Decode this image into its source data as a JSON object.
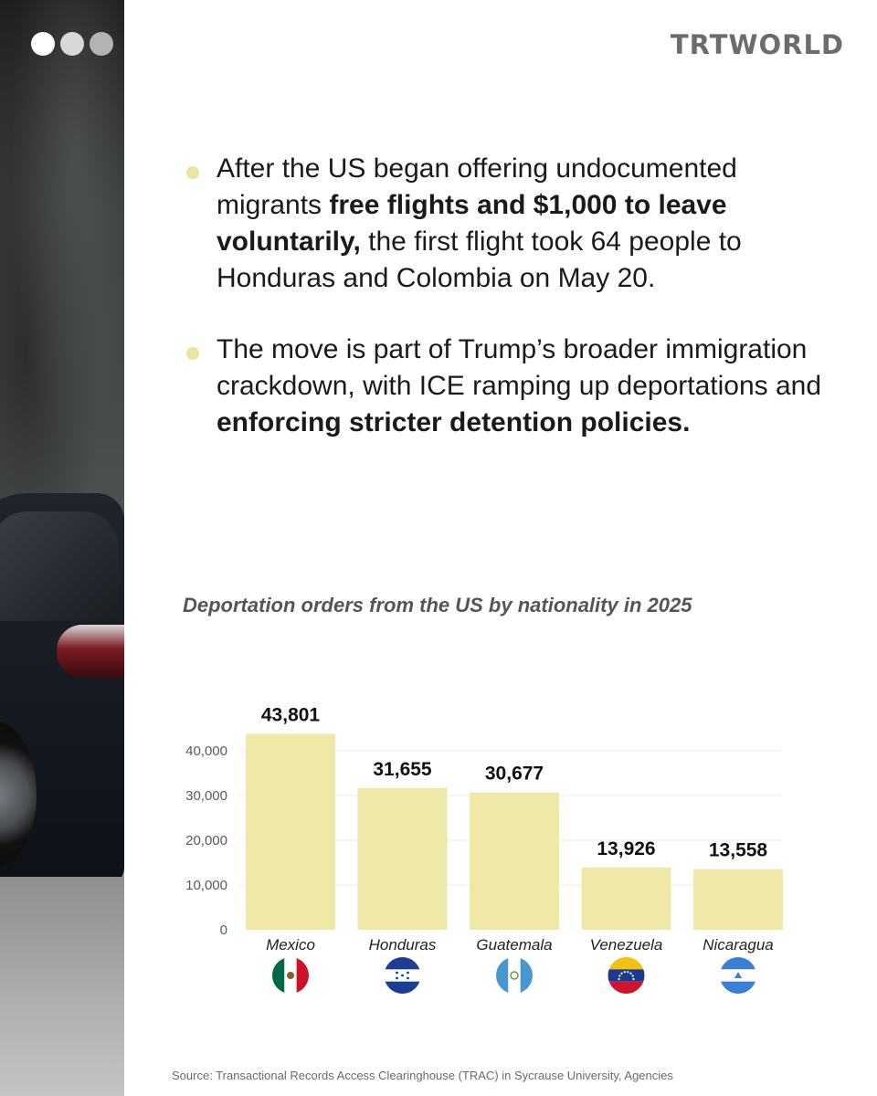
{
  "logo": {
    "text": "TRTWORLD"
  },
  "bullets": [
    {
      "parts": [
        {
          "text": "After the US began offering undocumented migrants ",
          "bold": false
        },
        {
          "text": "free flights and $1,000 to leave voluntarily,",
          "bold": true
        },
        {
          "text": " the first flight took 64 people to Honduras and Colombia on May 20.",
          "bold": false
        }
      ]
    },
    {
      "parts": [
        {
          "text": "The move is part of Trump’s broader immigration crackdown, with ICE ramping up deportations and ",
          "bold": false
        },
        {
          "text": "enforcing stricter detention policies.",
          "bold": true
        }
      ]
    }
  ],
  "chart_data": {
    "type": "bar",
    "title": "Deportation orders from the US by nationality in 2025",
    "categories": [
      "Mexico",
      "Honduras",
      "Guatemala",
      "Venezuela",
      "Nicaragua"
    ],
    "values": [
      43801,
      31655,
      30677,
      13926,
      13558
    ],
    "value_labels": [
      "43,801",
      "31,655",
      "30,677",
      "13,926",
      "13,558"
    ],
    "yticks": [
      0,
      10000,
      20000,
      30000,
      40000
    ],
    "ytick_labels": [
      "0",
      "10,000",
      "20,000",
      "30,000",
      "40,000"
    ],
    "ylim": [
      0,
      46000
    ],
    "grid": true,
    "bar_color": "#f0e8a6",
    "xlabel": "",
    "ylabel": ""
  },
  "flag_icons": [
    "mexico-flag-icon",
    "honduras-flag-icon",
    "guatemala-flag-icon",
    "venezuela-flag-icon",
    "nicaragua-flag-icon"
  ],
  "source": "Source: Transactional Records Access Clearinghouse (TRAC) in Sycrause University, Agencies"
}
